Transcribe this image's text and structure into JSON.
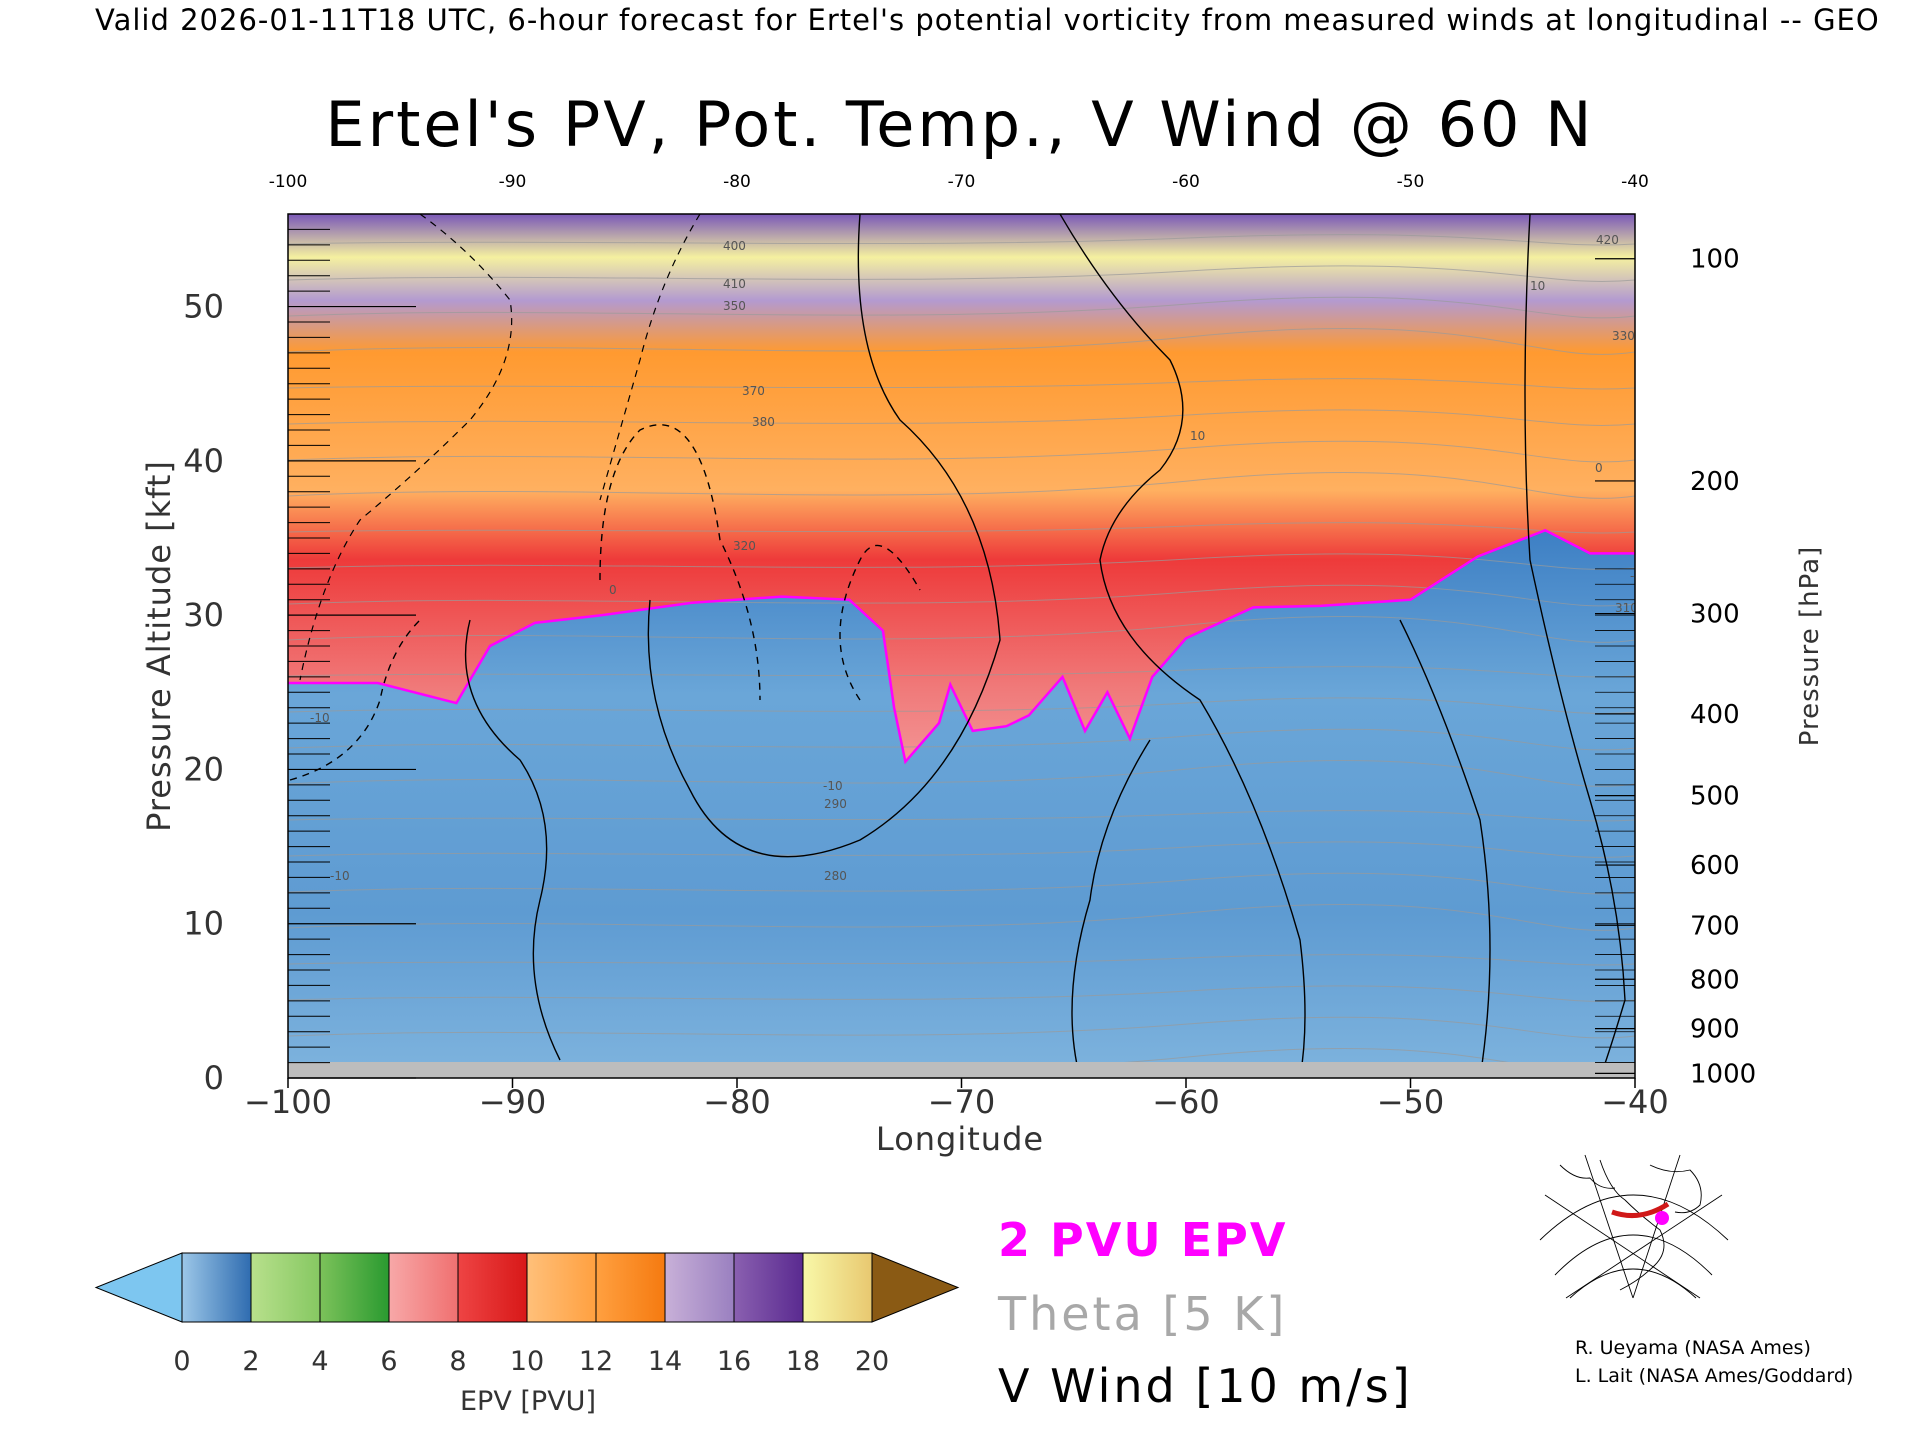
{
  "header": "Valid 2026-01-11T18 UTC, 6-hour forecast for Ertel's potential vorticity from measured winds at longitudinal -- GEO",
  "chart_data": {
    "type": "heatmap",
    "title": "Ertel's PV, Pot. Temp., V Wind @ 60 N",
    "xlabel": "Longitude",
    "ylabel": "Pressure Altitude [kft]",
    "y2label": "Pressure [hPa]",
    "xlim": [
      -100,
      -40
    ],
    "ylim": [
      0,
      56
    ],
    "x_ticks": [
      -100,
      -90,
      -80,
      -70,
      -60,
      -50,
      -40
    ],
    "x_top_ticks": [
      "-100",
      "-90",
      "-80",
      "-70",
      "-60",
      "-50",
      "-40"
    ],
    "y_ticks": [
      0,
      10,
      20,
      30,
      40,
      50
    ],
    "pressure_ticks": [
      {
        "label": "100",
        "kft": 53.1
      },
      {
        "label": "200",
        "kft": 38.7
      },
      {
        "label": "300",
        "kft": 30.1
      },
      {
        "label": "400",
        "kft": 23.6
      },
      {
        "label": "500",
        "kft": 18.3
      },
      {
        "label": "600",
        "kft": 13.8
      },
      {
        "label": "700",
        "kft": 9.9
      },
      {
        "label": "800",
        "kft": 6.4
      },
      {
        "label": "900",
        "kft": 3.2
      },
      {
        "label": "1000",
        "kft": 0.3
      }
    ],
    "colorbar": {
      "label": "EPV [PVU]",
      "ticks": [
        "0",
        "2",
        "4",
        "6",
        "8",
        "10",
        "12",
        "14",
        "16",
        "18",
        "20"
      ],
      "under_color": "#7dc6f0",
      "over_color": "#8a5a14",
      "bins": [
        [
          "#9cc7e8",
          "#2f6cb0"
        ],
        [
          "#b8e08c",
          "#86c862"
        ],
        [
          "#7cc25a",
          "#2a9a30"
        ],
        [
          "#f7a8a8",
          "#f07070"
        ],
        [
          "#ee4444",
          "#d81818"
        ],
        [
          "#ffc07a",
          "#ffa040"
        ],
        [
          "#ffa040",
          "#f57a10"
        ],
        [
          "#c8b0d8",
          "#9a80c0"
        ],
        [
          "#8a60b0",
          "#5a2a90"
        ],
        [
          "#f8f8a8",
          "#e8c870"
        ]
      ]
    },
    "pv_field": {
      "tropopause_kft": [
        {
          "lon": -100,
          "kft": 25.6
        },
        {
          "lon": -96,
          "kft": 25.6
        },
        {
          "lon": -92.5,
          "kft": 24.3
        },
        {
          "lon": -91,
          "kft": 28.0
        },
        {
          "lon": -89,
          "kft": 29.5
        },
        {
          "lon": -86,
          "kft": 30.0
        },
        {
          "lon": -82,
          "kft": 30.8
        },
        {
          "lon": -78,
          "kft": 31.2
        },
        {
          "lon": -75,
          "kft": 31.0
        },
        {
          "lon": -73.5,
          "kft": 29.0
        },
        {
          "lon": -73,
          "kft": 24.0
        },
        {
          "lon": -72.5,
          "kft": 20.5
        },
        {
          "lon": -71,
          "kft": 23.0
        },
        {
          "lon": -70.5,
          "kft": 25.5
        },
        {
          "lon": -69.5,
          "kft": 22.5
        },
        {
          "lon": -68,
          "kft": 22.8
        },
        {
          "lon": -67,
          "kft": 23.5
        },
        {
          "lon": -65.5,
          "kft": 26.0
        },
        {
          "lon": -64.5,
          "kft": 22.5
        },
        {
          "lon": -63.5,
          "kft": 25.0
        },
        {
          "lon": -62.5,
          "kft": 22.0
        },
        {
          "lon": -61.5,
          "kft": 26.0
        },
        {
          "lon": -60,
          "kft": 28.5
        },
        {
          "lon": -57,
          "kft": 30.5
        },
        {
          "lon": -54,
          "kft": 30.6
        },
        {
          "lon": -50,
          "kft": 31.0
        },
        {
          "lon": -47,
          "kft": 33.8
        },
        {
          "lon": -44,
          "kft": 35.5
        },
        {
          "lon": -42,
          "kft": 34.0
        },
        {
          "lon": -40,
          "kft": 34.0
        }
      ],
      "pv_isoline": "2 PVU EPV",
      "theta_interval": "Theta [5 K]",
      "vwind_interval": "V Wind [10 m/s]"
    },
    "contour_labels": [
      "10",
      "-10",
      "0",
      "290",
      "280",
      "310",
      "320",
      "330",
      "350",
      "370",
      "380",
      "400",
      "410",
      "420"
    ]
  },
  "legend": {
    "pv": "2 PVU EPV",
    "theta": "Theta [5 K]",
    "vwind": "V Wind [10 m/s]"
  },
  "credits": {
    "line1": "R. Ueyama (NASA Ames)",
    "line2": "L. Lait (NASA Ames/Goddard)"
  },
  "colors": {
    "pv_contour": "#ff00ff",
    "theta_contour": "#9a9a9a",
    "vwind_contour": "#000000",
    "terrain": "#bdbdbd",
    "troposphere": "#6aa6d8"
  }
}
